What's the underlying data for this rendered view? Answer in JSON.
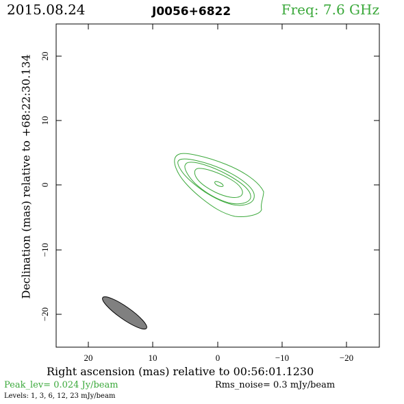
{
  "header": {
    "date": "2015.08.24",
    "source": "J0056+6822",
    "frequency": "Freq: 7.6 GHz"
  },
  "axes": {
    "xlabel": "Right ascension (mas) relative to 00:56:01.1230",
    "ylabel": "Declination (mas) relative to +68:22:30.134",
    "x_ticks": [
      "20",
      "10",
      "0",
      "−10",
      "−20"
    ],
    "y_ticks": [
      "20",
      "10",
      "0",
      "−10",
      "−20"
    ]
  },
  "footer": {
    "peak": "Peak_lev=  0.024 Jy/beam",
    "rms": "Rms_noise=   0.3 mJy/beam",
    "levels": "Levels:    1,    3,    6,   12,   23  mJy/beam"
  },
  "colors": {
    "contour": "#3aa83a",
    "beam": "#808080",
    "frame": "#000000"
  }
}
